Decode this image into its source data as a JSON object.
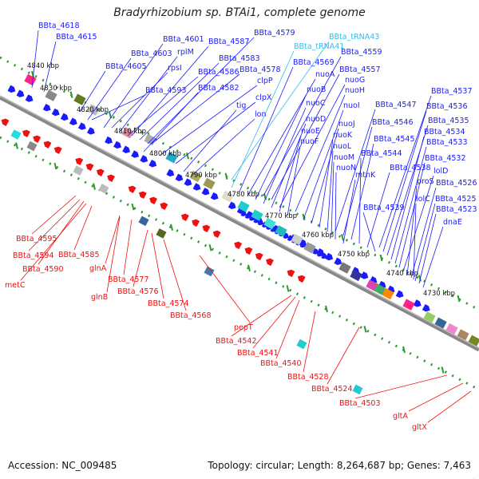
{
  "title": "Bradyrhizobium sp. BTAi1, complete genome",
  "footer": {
    "accession": "Accession: NC_009485",
    "summary": "Topology: circular; Length: 8,264,687 bp; Genes: 7,463"
  },
  "colors": {
    "top_label": "#1a1aff",
    "trna_label": "#33bbee",
    "bottom_label": "#ee1111",
    "backbone": "#888888",
    "ruler_dots": "#2a9a2a",
    "gene_forward": "#1a1aff",
    "gene_reverse": "#ee1111"
  },
  "ticks": [
    "4840 kbp",
    "4830 kbp",
    "4820 kbp",
    "4810 kbp",
    "4800 kbp",
    "4790 kbp",
    "4780 kbp",
    "4770 kbp",
    "4760 kbp",
    "4750 kbp",
    "4740 kbp",
    "4730 kbp"
  ],
  "top_labels": [
    {
      "text": "BBta_4618",
      "color": "blue"
    },
    {
      "text": "BBta_4615",
      "color": "blue"
    },
    {
      "text": "BBta_4601",
      "color": "blue"
    },
    {
      "text": "BBta_4587",
      "color": "blue"
    },
    {
      "text": "BBta_4579",
      "color": "blue"
    },
    {
      "text": "BBta_tRNA43",
      "color": "cyan"
    },
    {
      "text": "BBta_4603",
      "color": "blue"
    },
    {
      "text": "rplM",
      "color": "blue"
    },
    {
      "text": "BBta_4583",
      "color": "blue"
    },
    {
      "text": "BBta_tRNA41",
      "color": "cyan"
    },
    {
      "text": "BBta_4559",
      "color": "blue"
    },
    {
      "text": "BBta_4605",
      "color": "blue"
    },
    {
      "text": "rpsI",
      "color": "blue"
    },
    {
      "text": "BBta_4586",
      "color": "blue"
    },
    {
      "text": "BBta_4578",
      "color": "blue"
    },
    {
      "text": "BBta_4569",
      "color": "blue"
    },
    {
      "text": "BBta_4557",
      "color": "blue"
    },
    {
      "text": "BBta_4582",
      "color": "blue"
    },
    {
      "text": "clpP",
      "color": "blue"
    },
    {
      "text": "nuoA",
      "color": "blue"
    },
    {
      "text": "nuoG",
      "color": "blue"
    },
    {
      "text": "BBta_4593",
      "color": "blue"
    },
    {
      "text": "nuoB",
      "color": "blue"
    },
    {
      "text": "nuoH",
      "color": "blue"
    },
    {
      "text": "BBta_4537",
      "color": "blue"
    },
    {
      "text": "clpX",
      "color": "blue"
    },
    {
      "text": "tig",
      "color": "blue"
    },
    {
      "text": "nuoC",
      "color": "blue"
    },
    {
      "text": "nuoI",
      "color": "blue"
    },
    {
      "text": "BBta_4547",
      "color": "blue"
    },
    {
      "text": "BBta_4536",
      "color": "blue"
    },
    {
      "text": "lon",
      "color": "blue"
    },
    {
      "text": "nuoD",
      "color": "blue"
    },
    {
      "text": "nuoJ",
      "color": "blue"
    },
    {
      "text": "BBta_4546",
      "color": "blue"
    },
    {
      "text": "BBta_4535",
      "color": "blue"
    },
    {
      "text": "nuoE",
      "color": "blue"
    },
    {
      "text": "BBta_4534",
      "color": "blue"
    },
    {
      "text": "nuoF",
      "color": "blue"
    },
    {
      "text": "nuoK",
      "color": "blue"
    },
    {
      "text": "BBta_4545",
      "color": "blue"
    },
    {
      "text": "BBta_4533",
      "color": "blue"
    },
    {
      "text": "nuoL",
      "color": "blue"
    },
    {
      "text": "BBta_4544",
      "color": "blue"
    },
    {
      "text": "nuoM",
      "color": "blue"
    },
    {
      "text": "BBta_4532",
      "color": "blue"
    },
    {
      "text": "nuoN",
      "color": "blue"
    },
    {
      "text": "BBta_4538",
      "color": "blue"
    },
    {
      "text": "lolD",
      "color": "blue"
    },
    {
      "text": "mtnK",
      "color": "blue"
    },
    {
      "text": "proS",
      "color": "blue"
    },
    {
      "text": "BBta_4526",
      "color": "blue"
    },
    {
      "text": "lolC",
      "color": "blue"
    },
    {
      "text": "BBta_4525",
      "color": "blue"
    },
    {
      "text": "BBta_4539",
      "color": "blue"
    },
    {
      "text": "BBta_4523",
      "color": "blue"
    },
    {
      "text": "dnaE",
      "color": "blue"
    }
  ],
  "bottom_labels": [
    {
      "text": "BBta_4595",
      "color": "red"
    },
    {
      "text": "BBta_4594",
      "color": "red"
    },
    {
      "text": "BBta_4585",
      "color": "red"
    },
    {
      "text": "BBta_4590",
      "color": "red"
    },
    {
      "text": "glnA",
      "color": "red"
    },
    {
      "text": "metC",
      "color": "red"
    },
    {
      "text": "BBta_4577",
      "color": "red"
    },
    {
      "text": "glnB",
      "color": "red"
    },
    {
      "text": "BBta_4576",
      "color": "red"
    },
    {
      "text": "BBta_4574",
      "color": "red"
    },
    {
      "text": "BBta_4568",
      "color": "red"
    },
    {
      "text": "pepT",
      "color": "red"
    },
    {
      "text": "BBta_4542",
      "color": "red"
    },
    {
      "text": "BBta_4541",
      "color": "red"
    },
    {
      "text": "BBta_4540",
      "color": "red"
    },
    {
      "text": "BBta_4528",
      "color": "red"
    },
    {
      "text": "BBta_4524",
      "color": "red"
    },
    {
      "text": "BBta_4503",
      "color": "red"
    },
    {
      "text": "gltA",
      "color": "red"
    },
    {
      "text": "gltX",
      "color": "red"
    }
  ]
}
